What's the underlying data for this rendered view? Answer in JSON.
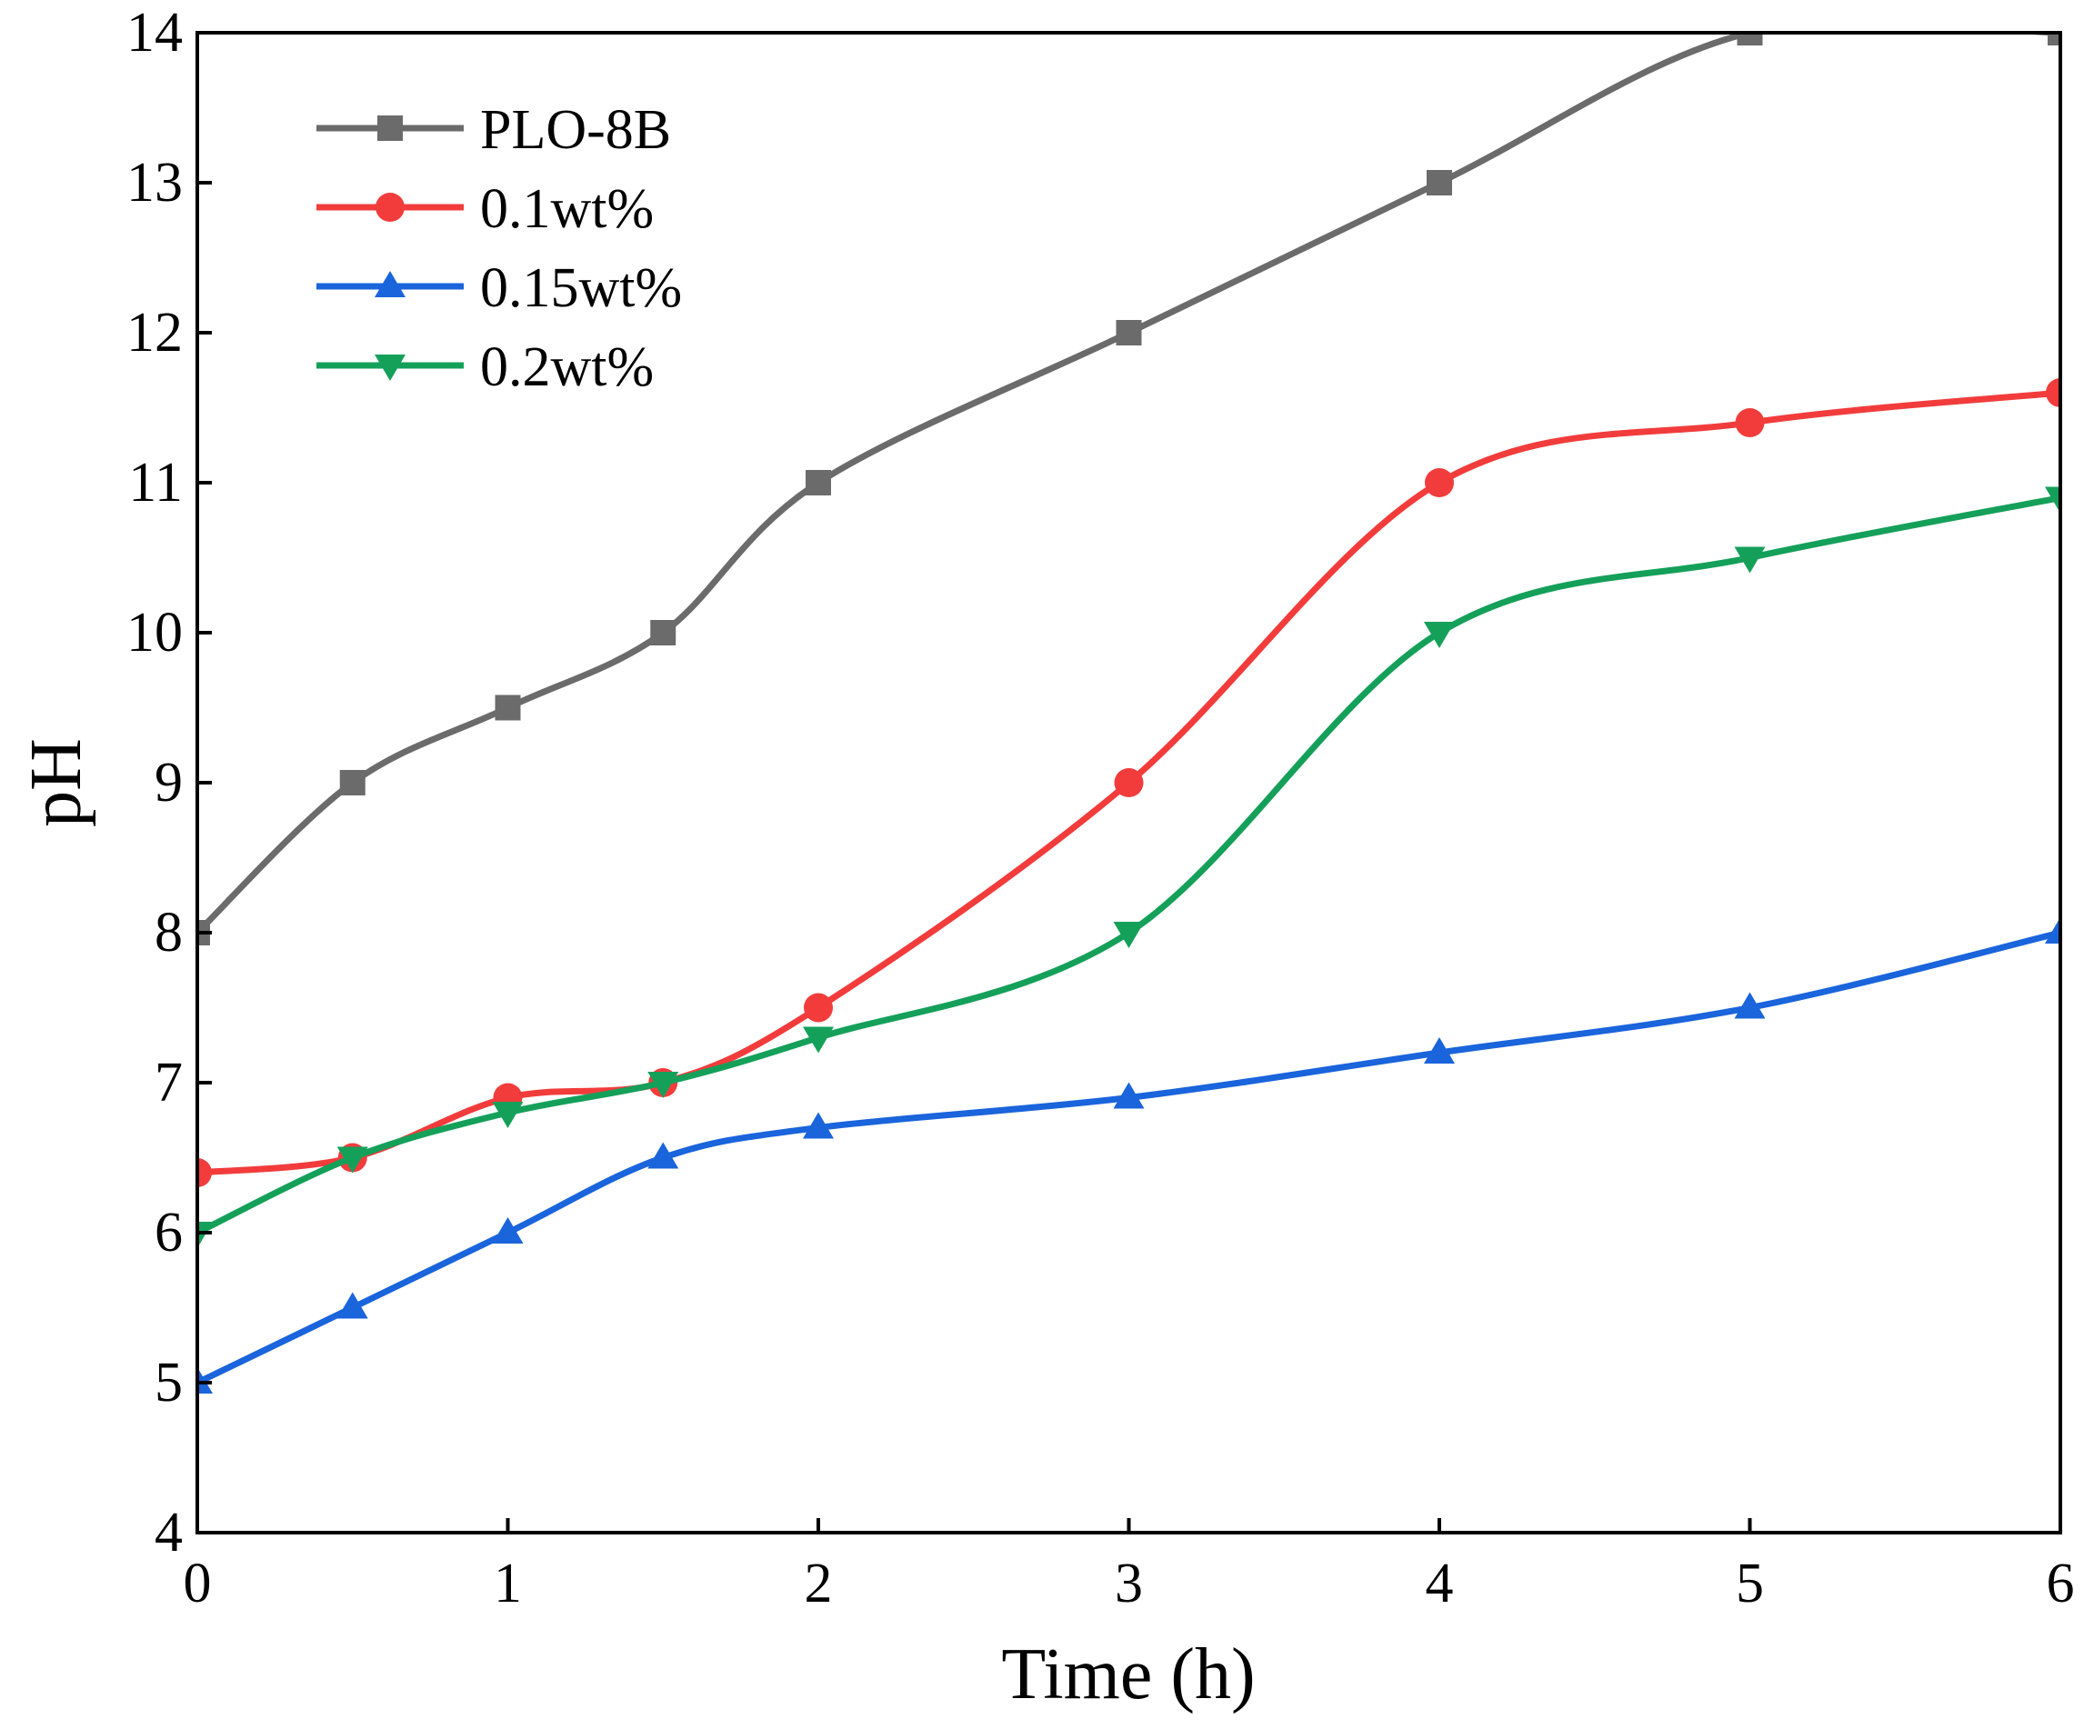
{
  "chart_data": {
    "type": "line",
    "title": "",
    "xlabel": "Time (h)",
    "ylabel": "pH",
    "xlim": [
      0,
      6
    ],
    "ylim": [
      4,
      14
    ],
    "x_ticks": [
      0,
      1,
      2,
      3,
      4,
      5,
      6
    ],
    "x_tick_labels": [
      "0",
      "1",
      "2",
      "3",
      "4",
      "5",
      "6"
    ],
    "y_ticks": [
      4,
      5,
      6,
      7,
      8,
      9,
      10,
      11,
      12,
      13,
      14
    ],
    "y_tick_labels": [
      "4",
      "5",
      "6",
      "7",
      "8",
      "9",
      "10",
      "11",
      "12",
      "13",
      "14"
    ],
    "grid": false,
    "legend_position": "top-left",
    "x": [
      0,
      0.5,
      1,
      1.5,
      2,
      3,
      4,
      5,
      6
    ],
    "series": [
      {
        "name": "PLO-8B",
        "color": "#6b6b6b",
        "marker": "square",
        "values": [
          8,
          9,
          9.5,
          10,
          11,
          12,
          13,
          14,
          14
        ]
      },
      {
        "name": "0.1wt%",
        "color": "#f23c3c",
        "marker": "circle",
        "values": [
          6.4,
          6.5,
          6.9,
          7.0,
          7.5,
          9.0,
          11.0,
          11.4,
          11.6
        ]
      },
      {
        "name": "0.15wt%",
        "color": "#1a64dc",
        "marker": "triangle-up",
        "values": [
          5.0,
          5.5,
          6.0,
          6.5,
          6.7,
          6.9,
          7.2,
          7.5,
          8.0
        ]
      },
      {
        "name": "0.2wt%",
        "color": "#15a05a",
        "marker": "triangle-down",
        "values": [
          6.0,
          6.5,
          6.8,
          7.0,
          7.3,
          8.0,
          10.0,
          10.5,
          10.9
        ]
      }
    ]
  }
}
